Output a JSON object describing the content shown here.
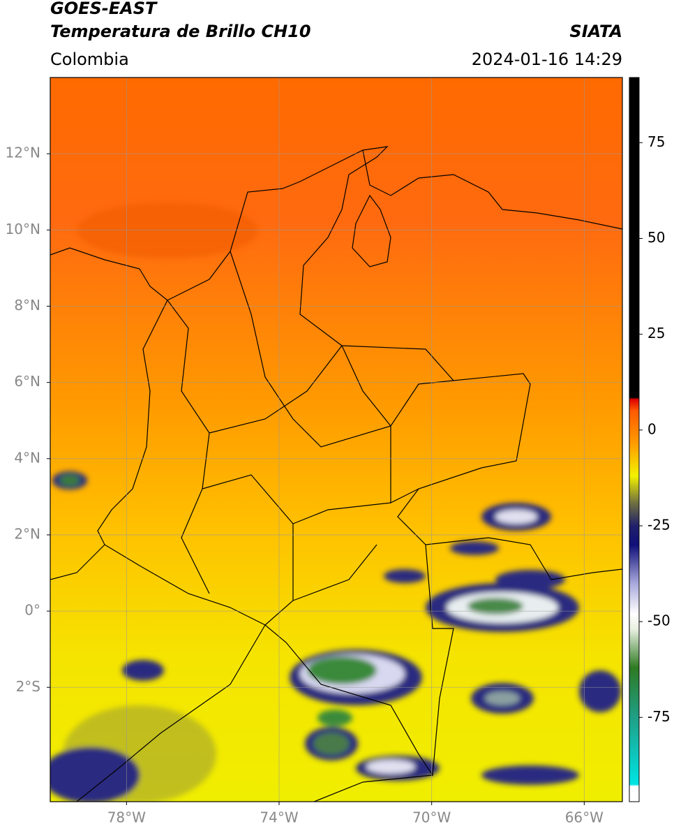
{
  "header": {
    "title": "GOES-EAST",
    "subtitle": "Temperatura de Brillo CH10",
    "source": "SIATA",
    "region": "Colombia",
    "datetime": "2024-01-16 14:29"
  },
  "map": {
    "xlim": [
      -80,
      -65
    ],
    "ylim": [
      -5,
      14
    ],
    "xticks": [
      {
        "value": -78,
        "label": "78°W"
      },
      {
        "value": -74,
        "label": "74°W"
      },
      {
        "value": -70,
        "label": "70°W"
      },
      {
        "value": -66,
        "label": "66°W"
      }
    ],
    "yticks": [
      {
        "value": 12,
        "label": "12°N"
      },
      {
        "value": 10,
        "label": "10°N"
      },
      {
        "value": 8,
        "label": "8°N"
      },
      {
        "value": 6,
        "label": "6°N"
      },
      {
        "value": 4,
        "label": "4°N"
      },
      {
        "value": 2,
        "label": "2°N"
      },
      {
        "value": 0,
        "label": "0°"
      },
      {
        "value": -2,
        "label": "2°S"
      }
    ],
    "grid": true
  },
  "colorbar": {
    "lim": [
      -97,
      92
    ],
    "ticks": [
      75,
      50,
      25,
      0,
      -25,
      -50,
      -75
    ],
    "stops": [
      {
        "value": -97,
        "color": "#ffffff"
      },
      {
        "value": -93,
        "color": "#ffffff"
      },
      {
        "value": -92.5,
        "color": "#00e5e5"
      },
      {
        "value": -75,
        "color": "#1f9f86"
      },
      {
        "value": -62,
        "color": "#2e7a22"
      },
      {
        "value": -52,
        "color": "#e8f0e0"
      },
      {
        "value": -48,
        "color": "#ffffff"
      },
      {
        "value": -40,
        "color": "#a8a8dc"
      },
      {
        "value": -30,
        "color": "#10107a"
      },
      {
        "value": -25,
        "color": "#20206a"
      },
      {
        "value": -19,
        "color": "#707040"
      },
      {
        "value": -12,
        "color": "#f2f200"
      },
      {
        "value": -4,
        "color": "#ffa000"
      },
      {
        "value": 5,
        "color": "#ff5a00"
      },
      {
        "value": 8,
        "color": "#e00000"
      },
      {
        "value": 8.5,
        "color": "#000000"
      },
      {
        "value": 92,
        "color": "#000000"
      }
    ]
  }
}
